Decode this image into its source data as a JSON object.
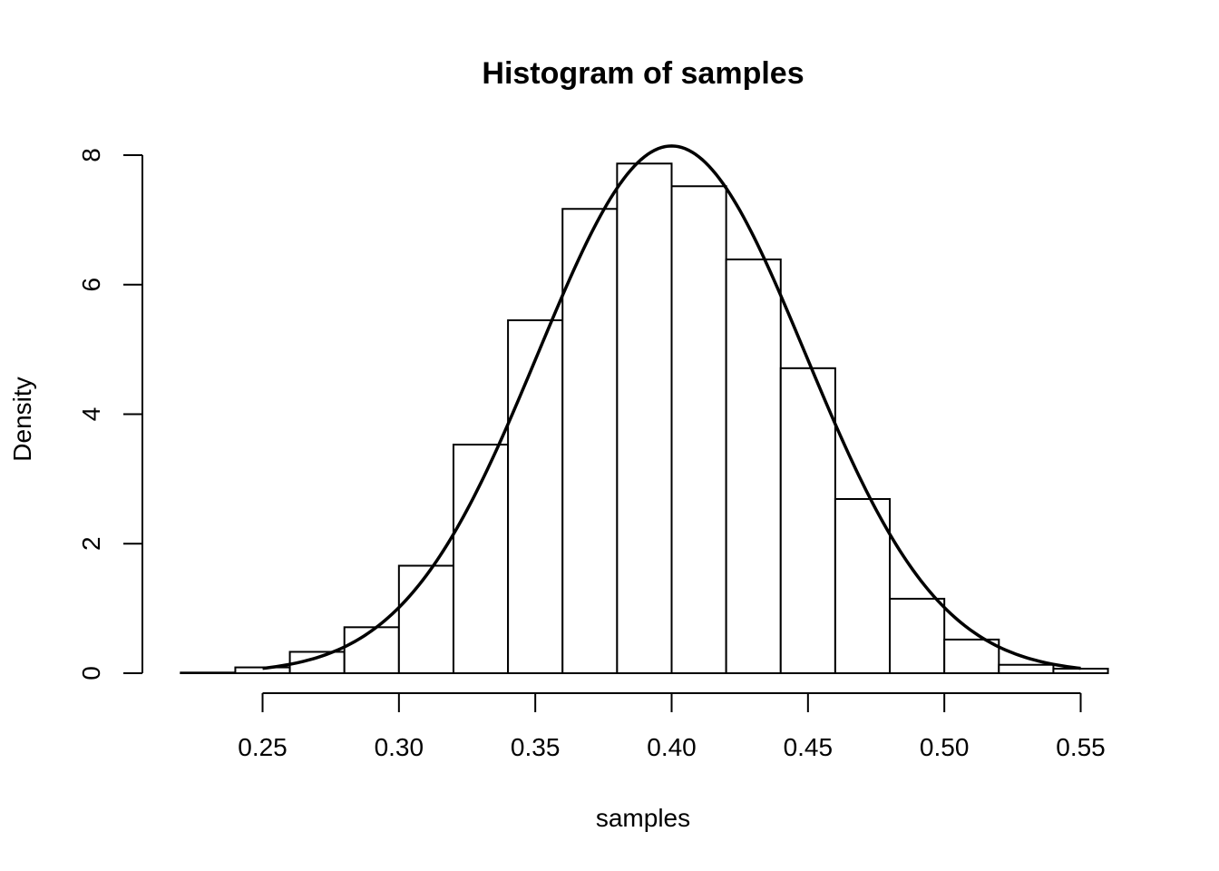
{
  "chart_data": {
    "type": "bar",
    "title": "Histogram of samples",
    "xlabel": "samples",
    "ylabel": "Density",
    "xlim": [
      0.22,
      0.56
    ],
    "ylim": [
      0,
      8
    ],
    "x_ticks": [
      0.25,
      0.3,
      0.35,
      0.4,
      0.45,
      0.5,
      0.55
    ],
    "x_tick_labels": [
      "0.25",
      "0.30",
      "0.35",
      "0.40",
      "0.45",
      "0.50",
      "0.55"
    ],
    "y_ticks": [
      0,
      2,
      4,
      6,
      8
    ],
    "y_tick_labels": [
      "0",
      "2",
      "4",
      "6",
      "8"
    ],
    "bins": [
      {
        "x0": 0.22,
        "x1": 0.24,
        "density": 0.01
      },
      {
        "x0": 0.24,
        "x1": 0.26,
        "density": 0.09
      },
      {
        "x0": 0.26,
        "x1": 0.28,
        "density": 0.33
      },
      {
        "x0": 0.28,
        "x1": 0.3,
        "density": 0.71
      },
      {
        "x0": 0.3,
        "x1": 0.32,
        "density": 1.66
      },
      {
        "x0": 0.32,
        "x1": 0.34,
        "density": 3.53
      },
      {
        "x0": 0.34,
        "x1": 0.36,
        "density": 5.45
      },
      {
        "x0": 0.36,
        "x1": 0.38,
        "density": 7.17
      },
      {
        "x0": 0.38,
        "x1": 0.4,
        "density": 7.87
      },
      {
        "x0": 0.4,
        "x1": 0.42,
        "density": 7.52
      },
      {
        "x0": 0.42,
        "x1": 0.44,
        "density": 6.39
      },
      {
        "x0": 0.44,
        "x1": 0.46,
        "density": 4.71
      },
      {
        "x0": 0.46,
        "x1": 0.48,
        "density": 2.69
      },
      {
        "x0": 0.48,
        "x1": 0.5,
        "density": 1.15
      },
      {
        "x0": 0.5,
        "x1": 0.52,
        "density": 0.52
      },
      {
        "x0": 0.52,
        "x1": 0.54,
        "density": 0.13
      },
      {
        "x0": 0.54,
        "x1": 0.56,
        "density": 0.07
      }
    ],
    "curve": {
      "type": "normal",
      "mean": 0.4,
      "sd": 0.049,
      "x_range": [
        0.25,
        0.55
      ]
    },
    "grid": false,
    "legend": "none"
  }
}
